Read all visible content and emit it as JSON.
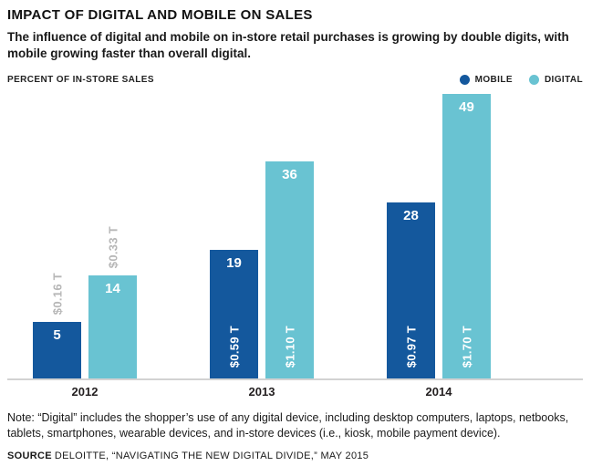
{
  "header": {
    "title": "IMPACT OF DIGITAL AND MOBILE ON SALES",
    "subtitle": "The influence of digital and mobile on in-store retail purchases is growing by double digits, with mobile growing faster than overall digital."
  },
  "chart_data": {
    "type": "bar",
    "title": "IMPACT OF DIGITAL AND MOBILE ON SALES",
    "ylabel": "PERCENT OF IN-STORE SALES",
    "categories": [
      "2012",
      "2013",
      "2014"
    ],
    "series": [
      {
        "name": "MOBILE",
        "color": "#14589d",
        "values": [
          5,
          19,
          28
        ],
        "dollar_labels": [
          "$0.16 T",
          "$0.59 T",
          "$0.97 T"
        ]
      },
      {
        "name": "DIGITAL",
        "color": "#69c3d2",
        "values": [
          14,
          36,
          49
        ],
        "dollar_labels": [
          "$0.33 T",
          "$1.10 T",
          "$1.70 T"
        ]
      }
    ],
    "legend_position": "top-right",
    "grid": false,
    "value_label_color": "#ffffff",
    "outside_label_color": "#b7b7b7"
  },
  "footer": {
    "note": "Note: “Digital” includes the shopper’s use of any digital device, including desktop computers, laptops, netbooks, tablets, smartphones, wearable devices, and in-store devices (i.e., kiosk, mobile payment device).",
    "source_label": "SOURCE",
    "source_text": "DELOITTE, “NAVIGATING THE NEW DIGITAL DIVIDE,” MAY 2015"
  }
}
